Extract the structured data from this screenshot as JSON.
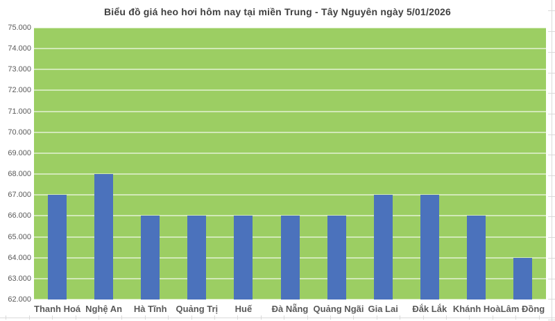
{
  "chart_data": {
    "type": "bar",
    "title": "Biểu đồ giá heo hơi hôm nay tại miền Trung - Tây Nguyên ngày 5/01/2026",
    "categories": [
      "Thanh Hoá",
      "Nghệ An",
      "Hà Tĩnh",
      "Quảng Trị",
      "Huế",
      "Đà Nẵng",
      "Quảng Ngãi",
      "Gia Lai",
      "Đắk Lắk",
      "Khánh Hoà",
      "Lâm Đồng"
    ],
    "values": [
      67000,
      68000,
      66000,
      66000,
      66000,
      66000,
      66000,
      67000,
      67000,
      66000,
      64000
    ],
    "ytick_labels": [
      "62.000",
      "63.000",
      "64.000",
      "65.000",
      "66.000",
      "67.000",
      "68.000",
      "69.000",
      "70.000",
      "71.000",
      "72.000",
      "73.000",
      "74.000",
      "75.000"
    ],
    "ylim": [
      62000,
      75000
    ],
    "ytick_step": 1000,
    "xlabel": "",
    "ylabel": "",
    "grid": true,
    "legend_position": "none",
    "colors": {
      "bar": "#4B72BC",
      "plot_background": "#9CCE63",
      "gridline": "rgba(255,255,255,0.55)",
      "axis_text": "#595959",
      "title_text": "#404040",
      "page_background": "#FFFFFF",
      "ruler_line": "#D9D9D9"
    }
  }
}
